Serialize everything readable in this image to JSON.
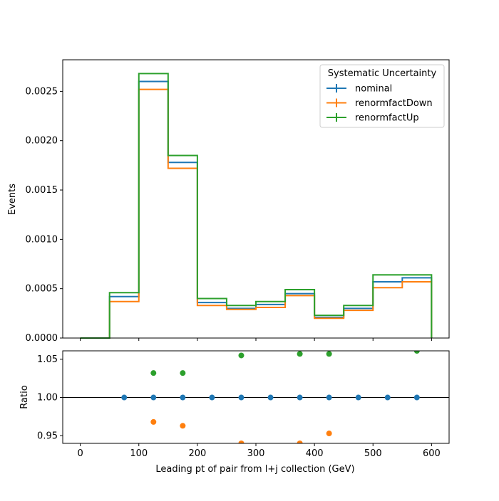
{
  "chart_data": [
    {
      "type": "line",
      "step": true,
      "ylabel": "Events",
      "ylim": [
        0,
        0.00282
      ],
      "xlim": [
        -30,
        630
      ],
      "yticks": [
        "0.0000",
        "0.0005",
        "0.0010",
        "0.0015",
        "0.0020",
        "0.0025"
      ],
      "ytick_values": [
        0,
        0.0005,
        0.001,
        0.0015,
        0.002,
        0.0025
      ],
      "bin_edges": [
        0,
        50,
        100,
        150,
        200,
        250,
        300,
        350,
        400,
        450,
        500,
        550,
        600
      ],
      "legend": {
        "title": "Systematic Uncertainty",
        "placement": "top-right"
      },
      "series": [
        {
          "name": "nominal",
          "color": "#1f77b4",
          "values": [
            0.0,
            0.00042,
            0.0026,
            0.00178,
            0.00036,
            0.0003,
            0.00034,
            0.00045,
            0.00021,
            0.0003,
            0.00057,
            0.00061
          ]
        },
        {
          "name": "renormfactDown",
          "color": "#ff7f0e",
          "values": [
            0.0,
            0.00037,
            0.00252,
            0.00172,
            0.00033,
            0.00029,
            0.00031,
            0.00043,
            0.0002,
            0.00028,
            0.00051,
            0.00057
          ]
        },
        {
          "name": "renormfactUp",
          "color": "#2ca02c",
          "values": [
            0.0,
            0.00046,
            0.00268,
            0.00185,
            0.0004,
            0.00033,
            0.00037,
            0.00049,
            0.00023,
            0.00033,
            0.00064,
            0.00064
          ]
        }
      ]
    },
    {
      "type": "scatter",
      "xlabel": "Leading pt of pair from l+j collection (GeV)",
      "ylabel": "Ratio",
      "ylim": [
        0.94,
        1.061
      ],
      "xlim": [
        -30,
        630
      ],
      "xticks": [
        "0",
        "100",
        "200",
        "300",
        "400",
        "500",
        "600"
      ],
      "xtick_values": [
        0,
        100,
        200,
        300,
        400,
        500,
        600
      ],
      "yticks": [
        "0.95",
        "1.00",
        "1.05"
      ],
      "ytick_values": [
        0.95,
        1.0,
        1.05
      ],
      "reference_line": 1.0,
      "series": [
        {
          "name": "nominal",
          "color": "#1f77b4",
          "points": [
            [
              75,
              1.0
            ],
            [
              125,
              1.0
            ],
            [
              175,
              1.0
            ],
            [
              225,
              1.0
            ],
            [
              275,
              1.0
            ],
            [
              325,
              1.0
            ],
            [
              375,
              1.0
            ],
            [
              425,
              1.0
            ],
            [
              475,
              1.0
            ],
            [
              525,
              1.0
            ],
            [
              575,
              1.0
            ]
          ]
        },
        {
          "name": "renormfactDown",
          "color": "#ff7f0e",
          "points": [
            [
              125,
              0.968
            ],
            [
              175,
              0.963
            ],
            [
              275,
              0.94
            ],
            [
              375,
              0.94
            ],
            [
              425,
              0.953
            ]
          ]
        },
        {
          "name": "renormfactUp",
          "color": "#2ca02c",
          "points": [
            [
              125,
              1.032
            ],
            [
              175,
              1.032
            ],
            [
              275,
              1.055
            ],
            [
              375,
              1.057
            ],
            [
              425,
              1.057
            ],
            [
              575,
              1.061
            ]
          ]
        }
      ]
    }
  ]
}
